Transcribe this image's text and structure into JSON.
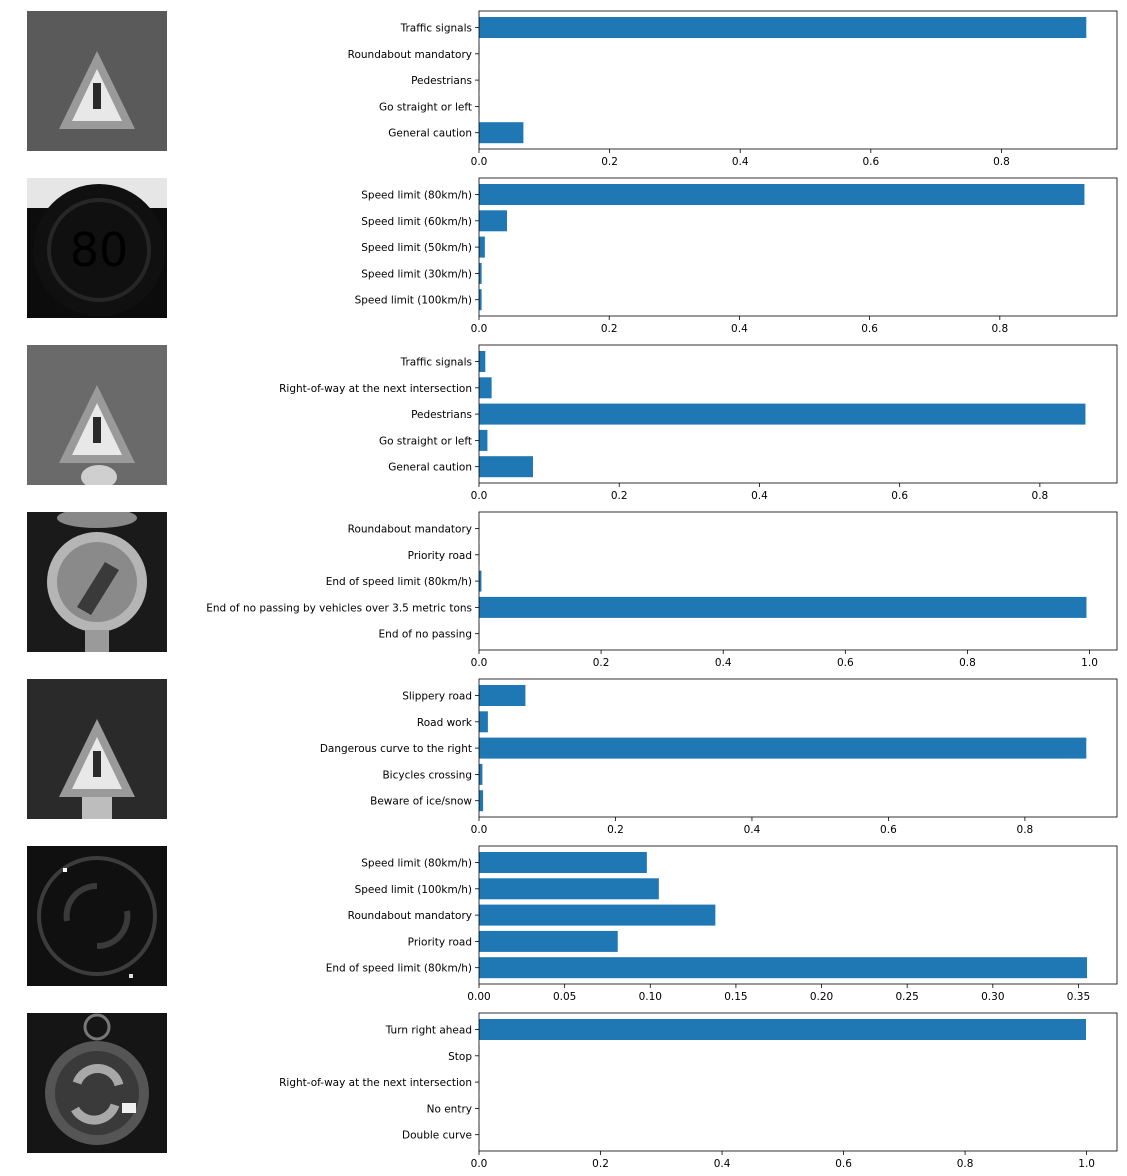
{
  "colors": {
    "bar": "#1f77b4",
    "axis": "#000000",
    "background": "#ffffff"
  },
  "chart_data": [
    {
      "type": "bar",
      "orientation": "horizontal",
      "image": "grayscale warning-triangle sign thumbnail",
      "categories": [
        "Traffic signals",
        "Roundabout mandatory",
        "Pedestrians",
        "Go straight or left",
        "General caution"
      ],
      "values": [
        0.93,
        0.0005,
        0.0005,
        0.0005,
        0.068
      ],
      "xlim": [
        0,
        0.977
      ],
      "xticks": [
        0.0,
        0.2,
        0.4,
        0.6,
        0.8
      ],
      "xtick_labels": [
        "0.0",
        "0.2",
        "0.4",
        "0.6",
        "0.8"
      ],
      "title": "",
      "xlabel": "",
      "ylabel": ""
    },
    {
      "type": "bar",
      "orientation": "horizontal",
      "image": "grayscale speed-limit 80 sign thumbnail",
      "categories": [
        "Speed limit (80km/h)",
        "Speed limit (60km/h)",
        "Speed limit (50km/h)",
        "Speed limit (30km/h)",
        "Speed limit (100km/h)"
      ],
      "values": [
        0.93,
        0.043,
        0.009,
        0.004,
        0.004
      ],
      "xlim": [
        0,
        0.98
      ],
      "xticks": [
        0.0,
        0.2,
        0.4,
        0.6,
        0.8
      ],
      "xtick_labels": [
        "0.0",
        "0.2",
        "0.4",
        "0.6",
        "0.8"
      ],
      "title": "",
      "xlabel": "",
      "ylabel": ""
    },
    {
      "type": "bar",
      "orientation": "horizontal",
      "image": "grayscale warning-triangle sign thumbnail",
      "categories": [
        "Traffic signals",
        "Right-of-way at the next intersection",
        "Pedestrians",
        "Go straight or left",
        "General caution"
      ],
      "values": [
        0.009,
        0.018,
        0.865,
        0.012,
        0.077
      ],
      "xlim": [
        0,
        0.91
      ],
      "xticks": [
        0.0,
        0.2,
        0.4,
        0.6,
        0.8
      ],
      "xtick_labels": [
        "0.0",
        "0.2",
        "0.4",
        "0.6",
        "0.8"
      ],
      "title": "",
      "xlabel": "",
      "ylabel": ""
    },
    {
      "type": "bar",
      "orientation": "horizontal",
      "image": "grayscale circular end-of-restriction sign thumbnail",
      "categories": [
        "Roundabout mandatory",
        "Priority road",
        "End of speed limit (80km/h)",
        "End of no passing by vehicles over 3.5 metric tons",
        "End of no passing"
      ],
      "values": [
        0.0005,
        0.0005,
        0.004,
        0.995,
        0.0005
      ],
      "xlim": [
        0,
        1.045
      ],
      "xticks": [
        0.0,
        0.2,
        0.4,
        0.6,
        0.8,
        1.0
      ],
      "xtick_labels": [
        "0.0",
        "0.2",
        "0.4",
        "0.6",
        "0.8",
        "1.0"
      ],
      "title": "",
      "xlabel": "",
      "ylabel": ""
    },
    {
      "type": "bar",
      "orientation": "horizontal",
      "image": "grayscale warning-triangle sign thumbnail",
      "categories": [
        "Slippery road",
        "Road work",
        "Dangerous curve to the right",
        "Bicycles crossing",
        "Beware of ice/snow"
      ],
      "values": [
        0.068,
        0.013,
        0.89,
        0.005,
        0.006
      ],
      "xlim": [
        0,
        0.935
      ],
      "xticks": [
        0.0,
        0.2,
        0.4,
        0.6,
        0.8
      ],
      "xtick_labels": [
        "0.0",
        "0.2",
        "0.4",
        "0.6",
        "0.8"
      ],
      "title": "",
      "xlabel": "",
      "ylabel": ""
    },
    {
      "type": "bar",
      "orientation": "horizontal",
      "image": "dark noisy roundabout sign thumbnail",
      "categories": [
        "Speed limit (80km/h)",
        "Speed limit (100km/h)",
        "Roundabout mandatory",
        "Priority road",
        "End of speed limit (80km/h)"
      ],
      "values": [
        0.098,
        0.105,
        0.138,
        0.081,
        0.355
      ],
      "xlim": [
        0,
        0.3725
      ],
      "xticks": [
        0.0,
        0.05,
        0.1,
        0.15,
        0.2,
        0.25,
        0.3,
        0.35
      ],
      "xtick_labels": [
        "0.00",
        "0.05",
        "0.10",
        "0.15",
        "0.20",
        "0.25",
        "0.30",
        "0.35"
      ],
      "title": "",
      "xlabel": "",
      "ylabel": ""
    },
    {
      "type": "bar",
      "orientation": "horizontal",
      "image": "grayscale circular blue-arrow sign thumbnail",
      "categories": [
        "Turn right ahead",
        "Stop",
        "Right-of-way at the next intersection",
        "No entry",
        "Double curve"
      ],
      "values": [
        0.999,
        0.0005,
        0.0005,
        0.0005,
        0.0005
      ],
      "xlim": [
        0,
        1.05
      ],
      "xticks": [
        0.0,
        0.2,
        0.4,
        0.6,
        0.8,
        1.0
      ],
      "xtick_labels": [
        "0.0",
        "0.2",
        "0.4",
        "0.6",
        "0.8",
        "1.0"
      ],
      "title": "",
      "xlabel": "",
      "ylabel": ""
    }
  ]
}
